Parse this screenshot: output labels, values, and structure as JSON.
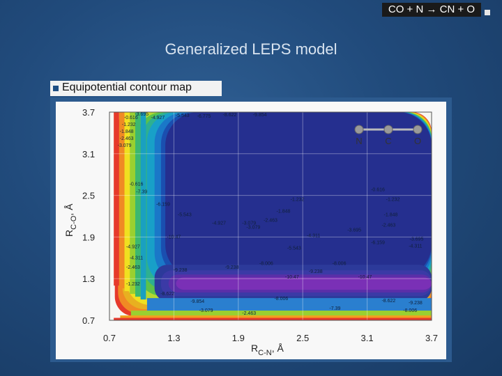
{
  "corner_label": "CO + N → CN + O",
  "title": "Generalized LEPS model",
  "bullet": "Equipotential contour map",
  "molecule_labels": [
    "N",
    "C",
    "O"
  ],
  "colors": {
    "background": "#214b7c",
    "accent": "#1f4f84"
  },
  "chart_data": {
    "type": "heatmap",
    "x_ticks": [
      "0.7",
      "1.3",
      "1.9",
      "2.5",
      "3.1",
      "3.7"
    ],
    "y_ticks": [
      "3.7",
      "3.1",
      "2.5",
      "1.9",
      "1.3",
      "0.7"
    ],
    "xlabel": {
      "main": "R",
      "sub": "C-N",
      "unit": ", Å"
    },
    "ylabel": {
      "main": "R",
      "sub": "C-O",
      "unit": ", Å"
    },
    "xlim": [
      0.7,
      3.7
    ],
    "ylim": [
      0.7,
      3.7
    ],
    "contour_labels": [
      "-0.616",
      "-1.232",
      "-1.848",
      "-2.463",
      "-3.079",
      "-3.695",
      "-4.311",
      "-4.927",
      "-5.543",
      "-6.159",
      "-6.775",
      "-7.39",
      "-8.006",
      "-8.622",
      "-9.238",
      "-9.854",
      "-10.47"
    ]
  }
}
